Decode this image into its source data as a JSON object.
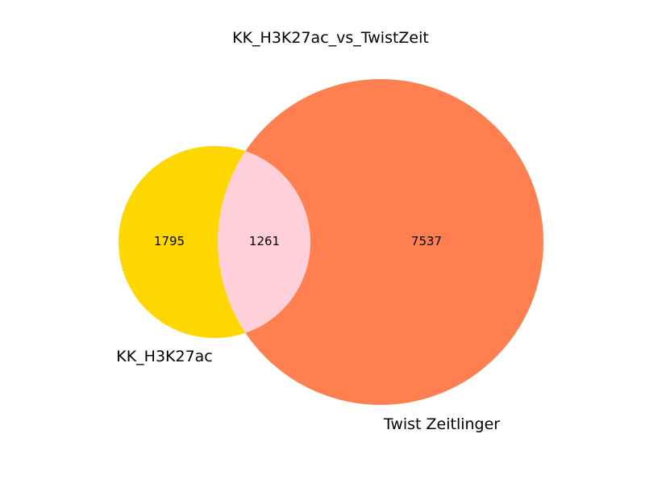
{
  "title": "KK_H3K27ac_vs_TwistZeit",
  "sets": [
    {
      "name": "KK_H3K27ac",
      "color": "#FFD700"
    },
    {
      "name": "Twist Zeitlinger",
      "color": "#FF7F50"
    }
  ],
  "overlap_color": "#FFD0D9",
  "counts": {
    "only_a": "1795",
    "both": "1261",
    "only_b": "7537"
  }
}
